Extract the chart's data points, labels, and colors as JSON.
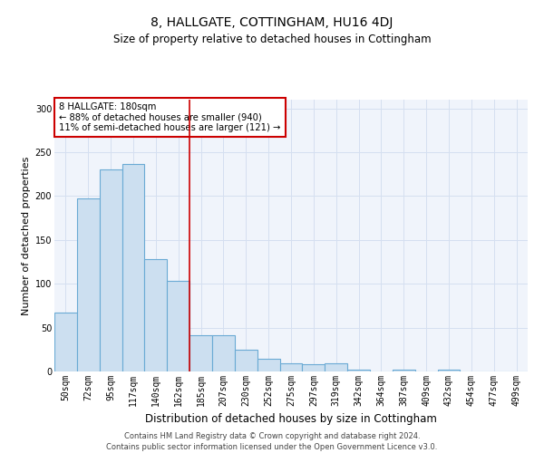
{
  "title": "8, HALLGATE, COTTINGHAM, HU16 4DJ",
  "subtitle": "Size of property relative to detached houses in Cottingham",
  "xlabel": "Distribution of detached houses by size in Cottingham",
  "ylabel": "Number of detached properties",
  "bar_values": [
    67,
    197,
    230,
    237,
    128,
    103,
    41,
    41,
    25,
    14,
    9,
    8,
    9,
    2,
    0,
    2,
    0,
    2,
    0,
    0,
    0
  ],
  "bar_labels": [
    "50sqm",
    "72sqm",
    "95sqm",
    "117sqm",
    "140sqm",
    "162sqm",
    "185sqm",
    "207sqm",
    "230sqm",
    "252sqm",
    "275sqm",
    "297sqm",
    "319sqm",
    "342sqm",
    "364sqm",
    "387sqm",
    "409sqm",
    "432sqm",
    "454sqm",
    "477sqm",
    "499sqm"
  ],
  "bar_color": "#ccdff0",
  "bar_edge_color": "#6aaad4",
  "red_line_x": 6,
  "annotation_text": "8 HALLGATE: 180sqm\n← 88% of detached houses are smaller (940)\n11% of semi-detached houses are larger (121) →",
  "annotation_box_facecolor": "white",
  "annotation_box_edgecolor": "#cc0000",
  "red_line_color": "#cc0000",
  "ylim": [
    0,
    310
  ],
  "yticks": [
    0,
    50,
    100,
    150,
    200,
    250,
    300
  ],
  "grid_color": "#d5dff0",
  "title_fontsize": 10,
  "subtitle_fontsize": 8.5,
  "ylabel_fontsize": 8,
  "xlabel_fontsize": 8.5,
  "tick_fontsize": 7,
  "footer_line1": "Contains HM Land Registry data © Crown copyright and database right 2024.",
  "footer_line2": "Contains public sector information licensed under the Open Government Licence v3.0.",
  "footer_fontsize": 6,
  "bg_color": "#f0f4fb"
}
